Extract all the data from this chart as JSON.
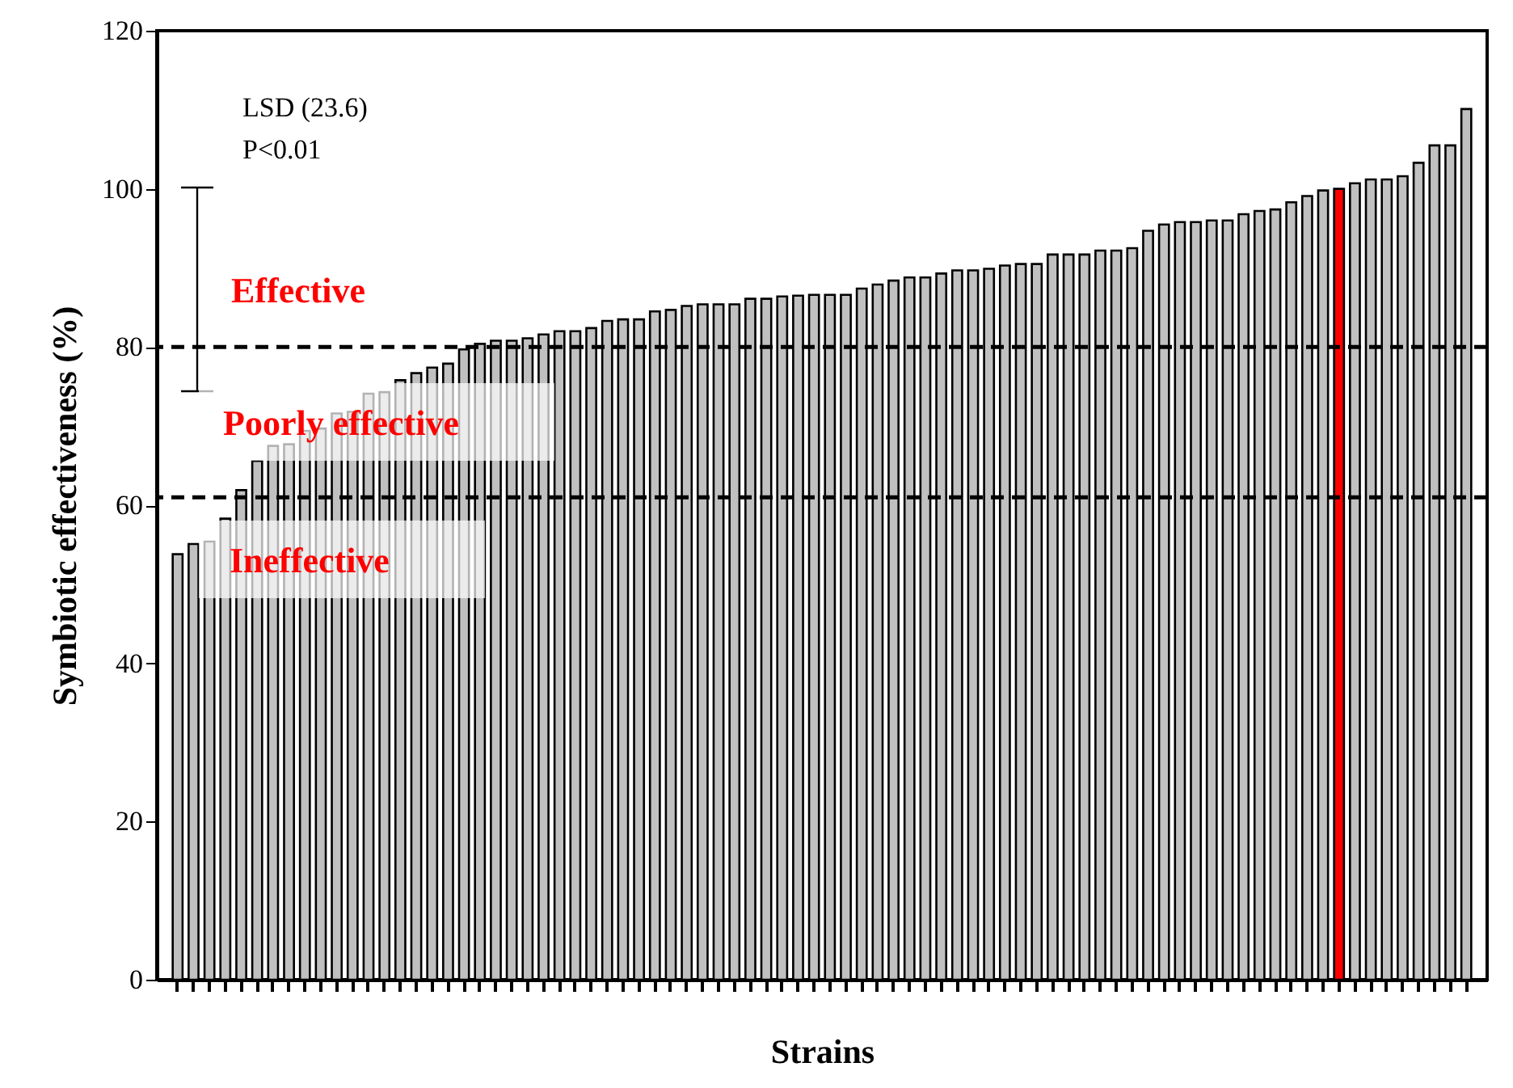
{
  "chart_data": {
    "type": "bar",
    "ylabel": "Symbiotic effectiveness (%)",
    "xlabel": "Strains",
    "categories": [
      null,
      null,
      null,
      null,
      null,
      null,
      null,
      null,
      null,
      null,
      null,
      null,
      null,
      null,
      null,
      null,
      null,
      null,
      null,
      null,
      null,
      null,
      null,
      null,
      null,
      null,
      null,
      null,
      null,
      null,
      null,
      null,
      null,
      null,
      null,
      null,
      null,
      null,
      null,
      null,
      null,
      null,
      null,
      null,
      null,
      null,
      null,
      null,
      null,
      null,
      null,
      null,
      null,
      null,
      null,
      null,
      null,
      null,
      null,
      null,
      null,
      null,
      null,
      null,
      null,
      null,
      null,
      null,
      null,
      null,
      null,
      null,
      null,
      null,
      null,
      null,
      null,
      null,
      null,
      null,
      null,
      null
    ],
    "values": [
      53.8,
      55.1,
      55.4,
      58.3,
      61.9,
      65.6,
      67.5,
      67.7,
      69.4,
      69.7,
      71.6,
      71.8,
      74.1,
      74.3,
      75.8,
      76.7,
      77.4,
      77.9,
      79.7,
      80.4,
      80.8,
      80.8,
      81.1,
      81.6,
      82.0,
      82.0,
      82.4,
      83.3,
      83.5,
      83.5,
      84.5,
      84.7,
      85.2,
      85.4,
      85.4,
      85.4,
      86.1,
      86.1,
      86.4,
      86.5,
      86.6,
      86.6,
      86.6,
      87.4,
      87.9,
      88.4,
      88.8,
      88.8,
      89.3,
      89.7,
      89.7,
      89.9,
      90.3,
      90.5,
      90.5,
      91.7,
      91.7,
      91.7,
      92.2,
      92.2,
      92.5,
      94.7,
      95.5,
      95.8,
      95.8,
      96.0,
      96.0,
      96.8,
      97.2,
      97.4,
      98.3,
      99.1,
      99.8,
      100.0,
      100.7,
      101.2,
      101.2,
      101.6,
      103.3,
      105.5,
      105.5,
      110.1
    ],
    "colors": [
      "#c0c0c0",
      "#c0c0c0",
      "#c0c0c0",
      "#c0c0c0",
      "#c0c0c0",
      "#c0c0c0",
      "#c0c0c0",
      "#c0c0c0",
      "#c0c0c0",
      "#c0c0c0",
      "#c0c0c0",
      "#c0c0c0",
      "#c0c0c0",
      "#c0c0c0",
      "#c0c0c0",
      "#c0c0c0",
      "#c0c0c0",
      "#c0c0c0",
      "#c0c0c0",
      "#c0c0c0",
      "#c0c0c0",
      "#c0c0c0",
      "#c0c0c0",
      "#c0c0c0",
      "#c0c0c0",
      "#c0c0c0",
      "#c0c0c0",
      "#c0c0c0",
      "#c0c0c0",
      "#c0c0c0",
      "#c0c0c0",
      "#c0c0c0",
      "#c0c0c0",
      "#c0c0c0",
      "#c0c0c0",
      "#c0c0c0",
      "#c0c0c0",
      "#c0c0c0",
      "#c0c0c0",
      "#c0c0c0",
      "#c0c0c0",
      "#c0c0c0",
      "#c0c0c0",
      "#c0c0c0",
      "#c0c0c0",
      "#c0c0c0",
      "#c0c0c0",
      "#c0c0c0",
      "#c0c0c0",
      "#c0c0c0",
      "#c0c0c0",
      "#c0c0c0",
      "#c0c0c0",
      "#c0c0c0",
      "#c0c0c0",
      "#c0c0c0",
      "#c0c0c0",
      "#c0c0c0",
      "#c0c0c0",
      "#c0c0c0",
      "#c0c0c0",
      "#c0c0c0",
      "#c0c0c0",
      "#c0c0c0",
      "#c0c0c0",
      "#c0c0c0",
      "#c0c0c0",
      "#c0c0c0",
      "#c0c0c0",
      "#c0c0c0",
      "#c0c0c0",
      "#c0c0c0",
      "#c0c0c0",
      "#ff0000",
      "#c0c0c0",
      "#c0c0c0",
      "#c0c0c0",
      "#c0c0c0",
      "#c0c0c0",
      "#c0c0c0",
      "#c0c0c0",
      "#c0c0c0"
    ],
    "ylim": [
      0,
      120
    ],
    "yticks": [
      0,
      20,
      40,
      60,
      80,
      100,
      120
    ],
    "ref_lines": [
      {
        "axis": "y",
        "value": 80,
        "line_style": "dashed",
        "color": "#000000"
      },
      {
        "axis": "y",
        "value": 61,
        "line_style": "dashed",
        "color": "#000000"
      }
    ],
    "annotations": [
      "LSD (23.6)",
      "P<0.01",
      "Effective",
      "Poorly effective",
      "Ineffective"
    ],
    "grid": false
  }
}
